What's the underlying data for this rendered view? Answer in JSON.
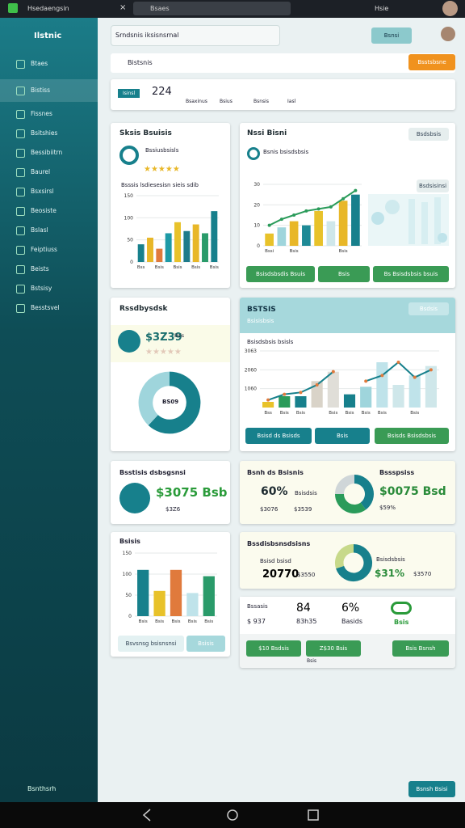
{
  "status_bar": {
    "app": "Hsedaengsin",
    "close": "×",
    "search": "Bsaes",
    "user": "Hsie"
  },
  "sidebar": {
    "title": "Ilstnic",
    "items": [
      "Btaes",
      "Bistiss",
      "Fissnes",
      "Bsitshies",
      "Bessibiitrn",
      "Baurel",
      "Bsxsirsl",
      "Beosiste",
      "Bslasl",
      "Feiptiuss",
      "Beists",
      "Bstsisy",
      "Besstsvel"
    ],
    "footer": "Bsnthsrh"
  },
  "header": {
    "search": "Srndsnis iksisnsrnal",
    "button": "Bsnsi"
  },
  "search_bar": {
    "text": "Bistsnis",
    "button": "Bsstsbsne"
  },
  "tabs": [
    "Isinsl",
    "224",
    "Bsaxinus",
    "Bsius",
    "Bsnsis",
    "Iasl"
  ],
  "cards": [
    {
      "title": "Sksis Bsuisis",
      "subtitle": "Bssiusbsisls",
      "chart_title": "Bsssis lsdiesesisn sieis sdib",
      "chart": {
        "ylim": [
          0,
          150
        ],
        "yticks": [
          0,
          50,
          100,
          150
        ],
        "categories": [
          "Bss",
          null,
          "Bsis",
          null,
          "Bsis",
          null,
          "Bsis",
          null,
          "Bsis"
        ],
        "values": [
          40,
          55,
          30,
          65,
          90,
          70,
          85,
          65,
          115
        ],
        "colors": [
          "#17808c",
          "#e8b728",
          "#e07a3c",
          "#1e9aa6",
          "#e8c22a",
          "#1e7b8a",
          "#e8b728",
          "#2a9b6a",
          "#17808c"
        ]
      }
    },
    {
      "title": "Nssi Bisni",
      "subtitle": "Bsnis bsisdsbsis",
      "badge": "Bsdsbsis",
      "side_title": "Bsdsisinsi",
      "buttons": [
        "Bsisdsbsdis Bsuis",
        "Bsis",
        "Bs Bsisdsbsis bsuis"
      ],
      "chart": {
        "ylim": [
          0,
          30
        ],
        "yticks": [
          0,
          10,
          20,
          30
        ],
        "categories": [
          "Bssi",
          null,
          "Bsis",
          null,
          null,
          null,
          "Bsis",
          null
        ],
        "values": [
          6,
          9,
          12,
          10,
          17,
          12,
          22,
          25
        ],
        "colors": [
          "#e8c22a",
          "#9fd5dc",
          "#e8b728",
          "#1e8a96",
          "#e8c22a",
          "#cfe7ea",
          "#e8b728",
          "#17808c"
        ],
        "line": {
          "values": [
            10,
            13,
            15,
            17,
            18,
            19,
            23,
            27
          ],
          "color": "#2a9b5a"
        }
      }
    },
    {
      "title": "Rssdbysdsk",
      "amount": "$3Z39",
      "note": "Bsis",
      "donut_label": "BS09",
      "donut": {
        "values": [
          62,
          38
        ],
        "colors": [
          "#17808c",
          "#9fd5dc"
        ]
      }
    },
    {
      "title": "BSTSIS",
      "subtitle": "Bsisisbsis",
      "badge": "Bsdsis",
      "chart_title": "Bsisdsbsis bsisls",
      "buttons": [
        "Bsisd ds Bsisds",
        "Bsis",
        "Bsisds Bsisdsbsis"
      ],
      "chart": {
        "ylim": [
          0,
          30
        ],
        "yticks": [
          {
            "value": 10,
            "label": "1060"
          },
          {
            "value": 20,
            "label": "2060"
          },
          {
            "value": 30,
            "label": "3063"
          }
        ],
        "categories": [
          "Bss",
          "Bsis",
          "Bsis",
          null,
          "Bsis",
          "Bsis",
          "Bsis",
          "Bsis",
          null,
          "Bsis",
          null
        ],
        "values": [
          3,
          6,
          6,
          14,
          19,
          7,
          11,
          24,
          12,
          17,
          22
        ],
        "colors": [
          "#e8c22a",
          "#2a9b5a",
          "#17808c",
          "#d9d3c8",
          "#e0ded8",
          "#17808c",
          "#9fd5dc",
          "#bfe3ea",
          "#cfe7ea",
          "#bfe3ea",
          "#cfe7ea"
        ],
        "line": {
          "values": [
            4,
            7,
            8,
            12,
            19,
            null,
            14,
            17,
            24,
            16,
            20
          ],
          "color": "#17808c",
          "color2": "#e07a3c"
        }
      }
    },
    {
      "title": "Bsstisis dsbsgsnsi",
      "amount": "$3075 Bsb",
      "sub": "$3Z6"
    },
    {
      "title": "Bsnh ds Bsisnis",
      "pct": "60%",
      "sub1": "Bsisdsis",
      "sub2": "$3076",
      "sub3": "$3539",
      "right_title": "Bssspsiss",
      "amount": "$0075 Bsd",
      "sub4": "$59%",
      "donut": {
        "values": [
          40,
          35,
          25
        ],
        "colors": [
          "#17808c",
          "#2a9b5a",
          "#cfd6d8"
        ]
      }
    },
    {
      "title": "Bsisis",
      "buttons": [
        "Bsvsnsg bsisnsnsi",
        "Bsisis"
      ],
      "chart": {
        "ylim": [
          0,
          150
        ],
        "yticks": [
          0,
          50,
          100,
          150
        ],
        "categories": [
          "Bsis",
          "Bsis",
          "Bsis",
          "Bsis",
          "Bsis"
        ],
        "values": [
          110,
          60,
          110,
          55,
          95
        ],
        "colors": [
          "#17808c",
          "#e8c22a",
          "#e07a3c",
          "#bfe3ea",
          "#2a9b6a"
        ]
      }
    },
    {
      "title": "Bssdisbsnsdsisns",
      "sub1": "Bsisd bsisd",
      "amount": "20770",
      "sub2": "$3550",
      "pct": "$31%",
      "sub3": "$3570",
      "legend": "Bsisdsbsis",
      "donut": {
        "values": [
          70,
          30
        ],
        "colors": [
          "#17808c",
          "#c7d98a"
        ]
      }
    },
    {
      "title": "Bssasis",
      "num1": "84",
      "num2": "6%",
      "sub1": "$ 937",
      "sub2": "83h35",
      "sub3": "Basids",
      "icon_label": "Bsis",
      "buttons": [
        "$10 Bsdsis",
        "Z$30 Bsis",
        "Bsis Bsnsh"
      ],
      "note": "Bsis"
    }
  ],
  "footer_button": "Bsnsh Bsisi"
}
